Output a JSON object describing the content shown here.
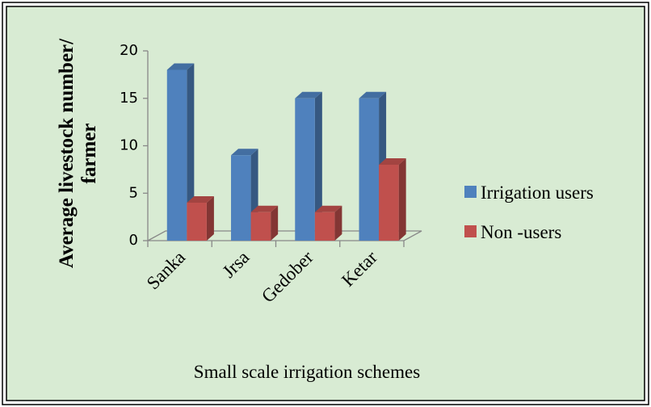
{
  "chart_data": {
    "type": "bar3d",
    "y_label": [
      "Average livestock number/",
      "farmer"
    ],
    "x_label": "Small scale irrigation schemes",
    "categories": [
      "Sanka",
      "Jrsa",
      "Gedober",
      "Ketar"
    ],
    "series": [
      {
        "name": "Irrigation users",
        "color": "#4f81bd",
        "values": [
          18,
          9,
          15,
          15
        ]
      },
      {
        "name": "Non -users",
        "color": "#c0504d",
        "values": [
          4,
          3,
          3,
          8
        ]
      }
    ],
    "ylim": [
      0,
      20
    ],
    "yticks": [
      0,
      5,
      10,
      15,
      20
    ],
    "legend": "right"
  }
}
